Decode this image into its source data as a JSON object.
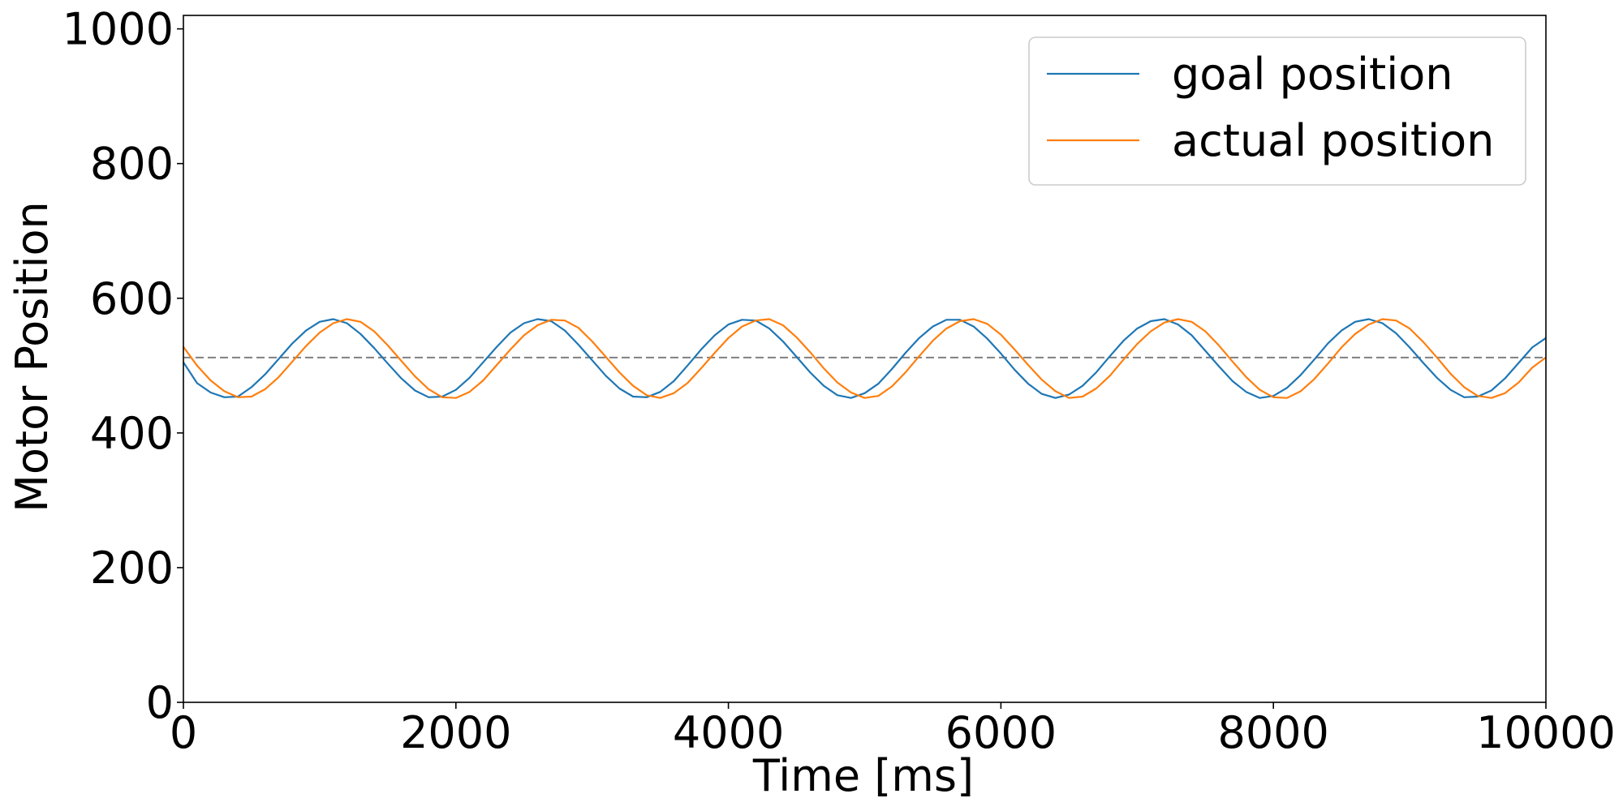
{
  "chart_data": {
    "type": "line",
    "title": "",
    "xlabel": "Time [ms]",
    "ylabel": "Motor Position",
    "xlim": [
      0,
      10000
    ],
    "ylim": [
      0,
      1020
    ],
    "x_ticks": [
      0,
      2000,
      4000,
      6000,
      8000,
      10000
    ],
    "y_ticks": [
      0,
      200,
      400,
      600,
      800,
      1000
    ],
    "grid": false,
    "legend_position": "top-right",
    "reference_line": {
      "y": 512,
      "style": "dashed",
      "color": "#808080"
    },
    "series": [
      {
        "name": "goal position",
        "color": "#1f77b4",
        "x": [
          0,
          100,
          200,
          300,
          400,
          500,
          600,
          700,
          800,
          900,
          1000,
          1100,
          1200,
          1300,
          1400,
          1500,
          1600,
          1700,
          1800,
          1900,
          2000,
          2100,
          2200,
          2300,
          2400,
          2500,
          2600,
          2700,
          2800,
          2900,
          3000,
          3100,
          3200,
          3300,
          3400,
          3500,
          3600,
          3700,
          3800,
          3900,
          4000,
          4100,
          4200,
          4300,
          4400,
          4500,
          4600,
          4700,
          4800,
          4900,
          5000,
          5100,
          5200,
          5300,
          5400,
          5500,
          5600,
          5700,
          5800,
          5900,
          6000,
          6100,
          6200,
          6300,
          6400,
          6500,
          6600,
          6700,
          6800,
          6900,
          7000,
          7100,
          7200,
          7300,
          7400,
          7500,
          7600,
          7700,
          7800,
          7900,
          8000,
          8100,
          8200,
          8300,
          8400,
          8500,
          8600,
          8700,
          8800,
          8900,
          9000,
          9100,
          9200,
          9300,
          9400,
          9500,
          9600,
          9700,
          9800,
          9900,
          10000
        ],
        "values": [
          505,
          474,
          460,
          453,
          454,
          468,
          487,
          510,
          533,
          552,
          565,
          569,
          563,
          547,
          526,
          503,
          481,
          463,
          453,
          454,
          464,
          482,
          505,
          528,
          549,
          563,
          569,
          566,
          552,
          531,
          508,
          485,
          466,
          454,
          453,
          461,
          477,
          500,
          524,
          545,
          561,
          568,
          567,
          555,
          536,
          513,
          490,
          470,
          456,
          452,
          459,
          473,
          495,
          519,
          541,
          558,
          568,
          568,
          558,
          540,
          518,
          494,
          473,
          458,
          452,
          457,
          470,
          490,
          514,
          537,
          555,
          566,
          569,
          561,
          545,
          522,
          499,
          477,
          461,
          452,
          455,
          467,
          486,
          509,
          533,
          552,
          565,
          569,
          563,
          548,
          527,
          504,
          482,
          464,
          453,
          454,
          463,
          481,
          504,
          527,
          541
        ]
      },
      {
        "name": "actual position",
        "color": "#ff7f0e",
        "x": [
          0,
          100,
          200,
          300,
          400,
          500,
          600,
          700,
          800,
          900,
          1000,
          1100,
          1200,
          1300,
          1400,
          1500,
          1600,
          1700,
          1800,
          1900,
          2000,
          2100,
          2200,
          2300,
          2400,
          2500,
          2600,
          2700,
          2800,
          2900,
          3000,
          3100,
          3200,
          3300,
          3400,
          3500,
          3600,
          3700,
          3800,
          3900,
          4000,
          4100,
          4200,
          4300,
          4400,
          4500,
          4600,
          4700,
          4800,
          4900,
          5000,
          5100,
          5200,
          5300,
          5400,
          5500,
          5600,
          5700,
          5800,
          5900,
          6000,
          6100,
          6200,
          6300,
          6400,
          6500,
          6600,
          6700,
          6800,
          6900,
          7000,
          7100,
          7200,
          7300,
          7400,
          7500,
          7600,
          7700,
          7800,
          7900,
          8000,
          8100,
          8200,
          8300,
          8400,
          8500,
          8600,
          8700,
          8800,
          8900,
          9000,
          9100,
          9200,
          9300,
          9400,
          9500,
          9600,
          9700,
          9800,
          9900,
          10000
        ],
        "values": [
          528,
          500,
          478,
          462,
          453,
          454,
          465,
          483,
          506,
          529,
          549,
          563,
          569,
          565,
          551,
          530,
          507,
          484,
          465,
          453,
          452,
          461,
          478,
          501,
          524,
          545,
          560,
          568,
          567,
          556,
          536,
          513,
          490,
          470,
          456,
          452,
          459,
          474,
          496,
          519,
          541,
          558,
          567,
          569,
          560,
          542,
          520,
          496,
          475,
          460,
          452,
          455,
          469,
          490,
          514,
          537,
          555,
          566,
          569,
          562,
          546,
          524,
          501,
          479,
          462,
          452,
          454,
          466,
          485,
          509,
          532,
          551,
          564,
          569,
          565,
          551,
          530,
          506,
          483,
          464,
          453,
          452,
          462,
          480,
          503,
          527,
          547,
          561,
          569,
          567,
          555,
          535,
          512,
          488,
          468,
          455,
          452,
          459,
          475,
          497,
          512
        ]
      }
    ]
  }
}
